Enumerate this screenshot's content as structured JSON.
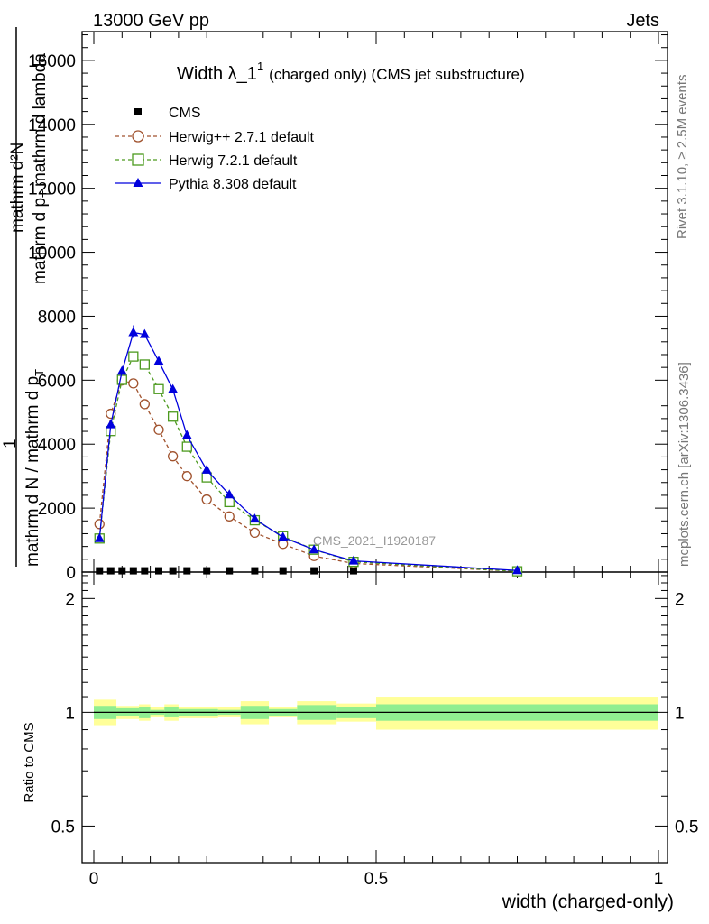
{
  "header": {
    "left": "13000 GeV pp",
    "right": "Jets"
  },
  "side_labels": {
    "rivet": "Rivet 3.1.10, ≥ 2.5M events",
    "mcplots": "mcplots.cern.ch [arXiv:1306.3436]"
  },
  "watermark": "CMS_2021_I1920187",
  "colors": {
    "herwigpp": "#a0522d",
    "herwig7": "#4c9a1e",
    "pythia": "#0000dd",
    "cms": "#000000",
    "band_outer": "#ffff99",
    "band_inner": "#90ee90"
  },
  "chart_data": [
    {
      "type": "line",
      "title": "Width λ_1",
      "title_sup": "1",
      "title_suffix": "(charged only) (CMS jet substructure)",
      "ylabel_top": "mathrm d²N",
      "ylabel_top_sub": "mathrm d p",
      "ylabel_top_sub2": "T",
      "ylabel_top_rest": "mathrm d lambda",
      "ylabel_main_num": "1",
      "ylabel_main_den": "mathrm d N / mathrm d p",
      "ylabel_main_sub": "T",
      "xlim": [
        0,
        1
      ],
      "ylim": [
        0,
        16900
      ],
      "yticks": [
        0,
        2000,
        4000,
        6000,
        8000,
        10000,
        12000,
        14000,
        16000
      ],
      "ytick_labels": [
        "0",
        "2000",
        "4000",
        "6000",
        "8000",
        "10000",
        "12000",
        "14000",
        "16000"
      ],
      "x": [
        0.01,
        0.03,
        0.05,
        0.07,
        0.09,
        0.115,
        0.14,
        0.165,
        0.2,
        0.24,
        0.285,
        0.335,
        0.39,
        0.46,
        0.75
      ],
      "series": [
        {
          "name": "CMS",
          "marker": "square",
          "values": [
            40,
            40,
            40,
            40,
            40,
            40,
            40,
            40,
            40,
            40,
            40,
            40,
            40,
            40,
            0
          ]
        },
        {
          "name": "Herwig++ 2.7.1 default",
          "marker": "circle",
          "values": [
            1500,
            4950,
            5990,
            5900,
            5250,
            4450,
            3620,
            3000,
            2270,
            1740,
            1230,
            880,
            500,
            270,
            25
          ]
        },
        {
          "name": "Herwig 7.2.1 default",
          "marker": "open-square",
          "values": [
            1050,
            4410,
            6010,
            6740,
            6490,
            5720,
            4860,
            3920,
            2960,
            2190,
            1620,
            1120,
            700,
            320,
            25
          ]
        },
        {
          "name": "Pythia 8.308 default",
          "marker": "triangle",
          "values": [
            1050,
            4610,
            6280,
            7490,
            7430,
            6590,
            5710,
            4270,
            3190,
            2420,
            1660,
            1090,
            700,
            350,
            50
          ]
        }
      ]
    },
    {
      "type": "area",
      "ylabel": "Ratio to CMS",
      "xlabel": "width (charged-only)",
      "xlim": [
        0,
        1
      ],
      "ylim": [
        0.4,
        2.35
      ],
      "log_y": true,
      "xticks": [
        0,
        0.5,
        1
      ],
      "xtick_labels": [
        "0",
        "0.5",
        "1"
      ],
      "yticks": [
        0.5,
        1,
        2
      ],
      "ytick_labels": [
        "0.5",
        "1",
        "2"
      ],
      "bins": [
        {
          "x0": 0.0,
          "x1": 0.04,
          "inner": [
            0.96,
            1.04
          ],
          "outer": [
            0.92,
            1.08
          ]
        },
        {
          "x0": 0.04,
          "x1": 0.08,
          "inner": [
            0.975,
            1.025
          ],
          "outer": [
            0.96,
            1.04
          ]
        },
        {
          "x0": 0.08,
          "x1": 0.1,
          "inner": [
            0.965,
            1.035
          ],
          "outer": [
            0.95,
            1.05
          ]
        },
        {
          "x0": 0.1,
          "x1": 0.125,
          "inner": [
            0.985,
            1.015
          ],
          "outer": [
            0.97,
            1.03
          ]
        },
        {
          "x0": 0.125,
          "x1": 0.15,
          "inner": [
            0.97,
            1.03
          ],
          "outer": [
            0.95,
            1.05
          ]
        },
        {
          "x0": 0.15,
          "x1": 0.22,
          "inner": [
            0.98,
            1.02
          ],
          "outer": [
            0.965,
            1.035
          ]
        },
        {
          "x0": 0.22,
          "x1": 0.26,
          "inner": [
            0.985,
            1.015
          ],
          "outer": [
            0.97,
            1.03
          ]
        },
        {
          "x0": 0.26,
          "x1": 0.31,
          "inner": [
            0.96,
            1.04
          ],
          "outer": [
            0.93,
            1.07
          ]
        },
        {
          "x0": 0.31,
          "x1": 0.36,
          "inner": [
            0.98,
            1.02
          ],
          "outer": [
            0.97,
            1.03
          ]
        },
        {
          "x0": 0.36,
          "x1": 0.43,
          "inner": [
            0.955,
            1.045
          ],
          "outer": [
            0.93,
            1.07
          ]
        },
        {
          "x0": 0.43,
          "x1": 0.5,
          "inner": [
            0.965,
            1.035
          ],
          "outer": [
            0.945,
            1.055
          ]
        },
        {
          "x0": 0.5,
          "x1": 1.0,
          "inner": [
            0.95,
            1.05
          ],
          "outer": [
            0.9,
            1.1
          ]
        }
      ]
    }
  ]
}
